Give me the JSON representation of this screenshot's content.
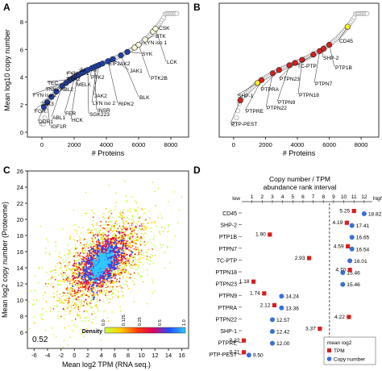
{
  "panel_letters": [
    "A",
    "B",
    "C",
    "D"
  ],
  "colors": {
    "curve_grey": "#a8a8a8",
    "kinase_blue": "#1f3fa8",
    "kinase_light": "#ffffe0",
    "ptp_red": "#d81e1e",
    "ptp_yellow": "#ffee22",
    "tpm_marker": "#d81e1e",
    "copy_marker": "#3a6fd8"
  },
  "chart_data": [
    {
      "panel": "A",
      "type": "scatter",
      "xlabel": "# Proteins",
      "ylabel": "Mean log10 copy number",
      "xlim": [
        -500,
        8700
      ],
      "ylim": [
        0,
        9
      ],
      "xticks": [
        "0",
        "2000",
        "4000",
        "6000",
        "8000"
      ],
      "yticks": [
        "0",
        "2",
        "4",
        "6",
        "8"
      ],
      "highlighted": [
        {
          "label": "DDR1",
          "x": 120,
          "y": 2.9,
          "shade": "dark"
        },
        {
          "label": "IGF1R",
          "x": 330,
          "y": 3.2,
          "shade": "dark"
        },
        {
          "label": "FGR",
          "x": 600,
          "y": 3.6,
          "shade": "dark"
        },
        {
          "label": "JAK3",
          "x": 900,
          "y": 3.85,
          "shade": "dark"
        },
        {
          "label": "ABL1",
          "x": 1250,
          "y": 4.05,
          "shade": "dark"
        },
        {
          "label": "FYN iso 2",
          "x": 1500,
          "y": 4.15,
          "shade": "dark"
        },
        {
          "label": "TNK2",
          "x": 1700,
          "y": 4.25,
          "shade": "dark"
        },
        {
          "label": "TEC",
          "x": 1850,
          "y": 4.3,
          "shade": "dark"
        },
        {
          "label": "ABL2",
          "x": 1950,
          "y": 4.35,
          "shade": "dark"
        },
        {
          "label": "FER",
          "x": 2050,
          "y": 4.38,
          "shade": "dark"
        },
        {
          "label": "HCK",
          "x": 2200,
          "y": 4.42,
          "shade": "dark"
        },
        {
          "label": "FYN iso1",
          "x": 2300,
          "y": 4.45,
          "shade": "dark"
        },
        {
          "label": "TYK2",
          "x": 2450,
          "y": 4.5,
          "shade": "dark"
        },
        {
          "label": "MELK",
          "x": 2550,
          "y": 4.53,
          "shade": "dark"
        },
        {
          "label": "ZAP70",
          "x": 2700,
          "y": 4.58,
          "shade": "dark"
        },
        {
          "label": "SGK223",
          "x": 2850,
          "y": 4.62,
          "shade": "dark"
        },
        {
          "label": "PTK2",
          "x": 3100,
          "y": 4.7,
          "shade": "dark"
        },
        {
          "label": "INSR",
          "x": 3250,
          "y": 4.75,
          "shade": "dark"
        },
        {
          "label": "LYN iso 2",
          "x": 3400,
          "y": 4.8,
          "shade": "dark"
        },
        {
          "label": "JAK2",
          "x": 3550,
          "y": 4.85,
          "shade": "dark"
        },
        {
          "label": "EIF2AK2",
          "x": 3750,
          "y": 4.92,
          "shade": "dark"
        },
        {
          "label": "RIPK2",
          "x": 4100,
          "y": 5.05,
          "shade": "dark"
        },
        {
          "label": "JAK1",
          "x": 4400,
          "y": 5.15,
          "shade": "dark"
        },
        {
          "label": "BLK",
          "x": 4900,
          "y": 5.35,
          "shade": "dark"
        },
        {
          "label": "SYK",
          "x": 5300,
          "y": 5.55,
          "shade": "dark"
        },
        {
          "label": "LYN iso 1",
          "x": 5750,
          "y": 5.85,
          "shade": "light"
        },
        {
          "label": "PTK2B",
          "x": 6000,
          "y": 6.05,
          "shade": "light"
        },
        {
          "label": "BTK",
          "x": 6400,
          "y": 6.5,
          "shade": "light"
        },
        {
          "label": "CSK",
          "x": 6900,
          "y": 7.1,
          "shade": "light"
        },
        {
          "label": "LCK",
          "x": 7050,
          "y": 7.25,
          "shade": "light"
        }
      ]
    },
    {
      "panel": "B",
      "type": "scatter",
      "xlabel": "# Proteins",
      "ylabel": "",
      "xlim": [
        -500,
        8700
      ],
      "ylim": [
        0,
        9
      ],
      "xticks": [
        "0",
        "2000",
        "4000",
        "6000",
        "8000"
      ],
      "highlighted": [
        {
          "label": "PTP-PEST",
          "x": 420,
          "y": 3.3,
          "shade": "red"
        },
        {
          "label": "SHP-1",
          "x": 1500,
          "y": 4.15,
          "shade": "yellow"
        },
        {
          "label": "PTPRE",
          "x": 1750,
          "y": 4.25,
          "shade": "red"
        },
        {
          "label": "PTPN22",
          "x": 2450,
          "y": 4.5,
          "shade": "red"
        },
        {
          "label": "PTPRA",
          "x": 2850,
          "y": 4.62,
          "shade": "red"
        },
        {
          "label": "PTPN9",
          "x": 3500,
          "y": 4.84,
          "shade": "red"
        },
        {
          "label": "PTPN23",
          "x": 3850,
          "y": 4.95,
          "shade": "red"
        },
        {
          "label": "PTPN18",
          "x": 4300,
          "y": 5.12,
          "shade": "red"
        },
        {
          "label": "TC-PTP",
          "x": 5000,
          "y": 5.4,
          "shade": "red"
        },
        {
          "label": "PTPN7",
          "x": 5400,
          "y": 5.6,
          "shade": "red"
        },
        {
          "label": "SHP-2",
          "x": 5650,
          "y": 5.78,
          "shade": "red"
        },
        {
          "label": "PTP1B",
          "x": 6000,
          "y": 6.05,
          "shade": "red"
        },
        {
          "label": "CD45",
          "x": 7150,
          "y": 7.35,
          "shade": "yellow"
        }
      ]
    },
    {
      "panel": "C",
      "type": "scatter",
      "xlabel": "Mean log2 TPM (RNA seq.)",
      "ylabel": "Mean log2 copy number (Proteome)",
      "xlim": [
        -7,
        17
      ],
      "ylim": [
        4,
        26
      ],
      "xticks": [
        "-6",
        "-4",
        "-2",
        "0",
        "2",
        "4",
        "6",
        "8",
        "10",
        "12",
        "14",
        "16"
      ],
      "yticks": [
        "6",
        "8",
        "10",
        "12",
        "14",
        "16",
        "18",
        "20",
        "22",
        "24",
        "26"
      ],
      "correlation": "0.52",
      "colorbar": {
        "title": "Density",
        "ticks": [
          "0.0",
          "0.125",
          "0.25",
          "0.5",
          "1.0"
        ],
        "colors": [
          "#c8ff46",
          "#ffd000",
          "#ff3a00",
          "#e00060",
          "#2050ff",
          "#30c8ff"
        ]
      },
      "density_center": {
        "x": 4,
        "y": 14.5
      }
    },
    {
      "panel": "D",
      "type": "scatter",
      "title": "Copy number / TPM abundance rank interval",
      "axis_low": "low",
      "axis_high": "high",
      "x_ticks": [
        "1",
        "2",
        "3",
        "4",
        "5",
        "6",
        "7",
        "8",
        "9",
        "10",
        "11",
        "12"
      ],
      "xlim": [
        0,
        12.8
      ],
      "divider_x": 8.6,
      "legend": {
        "title": "mean log2",
        "items": [
          "TPM",
          "Copy number"
        ]
      },
      "rows": [
        {
          "label": "CD45",
          "tpm": 5.25,
          "tpm_rank": 11.0,
          "copy": 18.82,
          "copy_rank": 12.0
        },
        {
          "label": "SHP-2",
          "tpm": 4.19,
          "tpm_rank": 10.3,
          "copy": 17.41,
          "copy_rank": 10.8
        },
        {
          "label": "PTP1B",
          "tpm": 1.9,
          "tpm_rank": 2.75,
          "copy": 16.65,
          "copy_rank": 10.8
        },
        {
          "label": "PTPN7",
          "tpm": 4.59,
          "tpm_rank": 10.4,
          "copy": 16.54,
          "copy_rank": 10.8
        },
        {
          "label": "TC-PTP",
          "tpm": 2.93,
          "tpm_rank": 6.6,
          "copy": 16.01,
          "copy_rank": 10.6
        },
        {
          "label": "PTPN18",
          "tpm": 4.7,
          "tpm_rank": 10.6,
          "copy": 15.46,
          "copy_rank": 9.9
        },
        {
          "label": "PTPN23",
          "tpm": 1.18,
          "tpm_rank": 1.15,
          "copy": 15.46,
          "copy_rank": 9.9
        },
        {
          "label": "PTPN9",
          "tpm": 1.74,
          "tpm_rank": 2.2,
          "copy": 14.24,
          "copy_rank": 3.9
        },
        {
          "label": "PTPRA",
          "tpm": 2.12,
          "tpm_rank": 3.2,
          "copy": 13.36,
          "copy_rank": 3.9
        },
        {
          "label": "PTPN22",
          "tpm": 4.22,
          "tpm_rank": 10.5,
          "copy": 12.57,
          "copy_rank": 3.0
        },
        {
          "label": "SHP-1",
          "tpm": 3.37,
          "tpm_rank": 7.65,
          "copy": 12.42,
          "copy_rank": 3.0
        },
        {
          "label": "PTPRE",
          "tpm": 0.22,
          "tpm_rank": 0.2,
          "copy": 12.0,
          "copy_rank": 3.0
        },
        {
          "label": "PTP-PEST",
          "tpm": 0.21,
          "tpm_rank": 0.2,
          "copy": 9.5,
          "copy_rank": 0.7
        }
      ]
    }
  ]
}
